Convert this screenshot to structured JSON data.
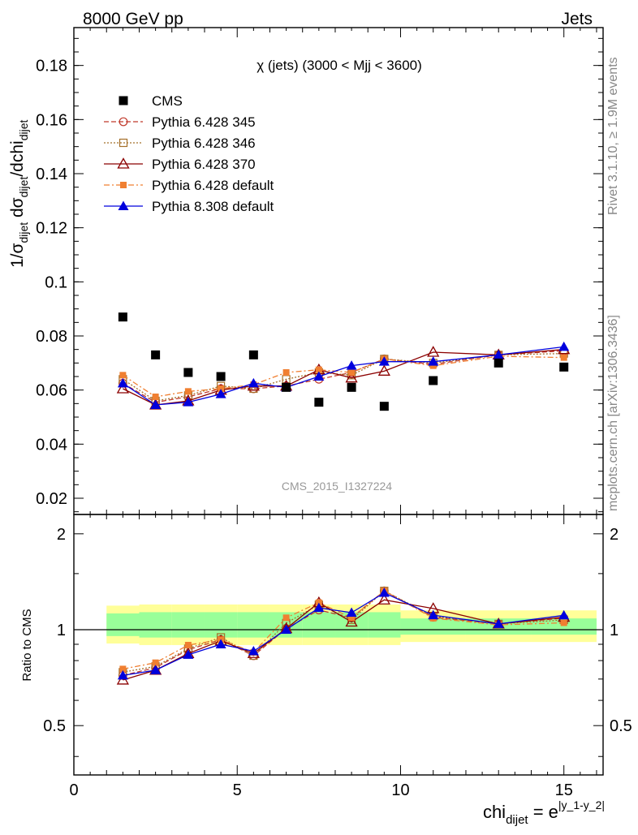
{
  "header": {
    "left": "8000 GeV pp",
    "right": "Jets"
  },
  "side_labels": {
    "rivet": "Rivet 3.1.10, ≥ 1.9M events",
    "mcplots": "mcplots.cern.ch [arXiv:1306.3436]"
  },
  "watermark": "CMS_2015_I1327224",
  "chart_data": {
    "type": "scatter",
    "title": "χ (jets) (3000 < Mjj < 3600)",
    "ylabel": {
      "prefix": "1/σ",
      "sub1": "dijet",
      "mid": " dσ",
      "sub2": "dijet",
      "tail": "/dchi",
      "sub3": "dijet"
    },
    "xlabel": {
      "base": "chi",
      "sub": "dijet",
      "eq": " = e",
      "sup": "|y_1-y_2|"
    },
    "xlim": [
      0,
      16.2
    ],
    "ylim": [
      0.014,
      0.194
    ],
    "ratio_ylabel": "Ratio to CMS",
    "ratio_ylim": [
      0.35,
      2.3
    ],
    "x_ticks": [
      "0",
      "5",
      "10",
      "15"
    ],
    "y_ticks": [
      "0.02",
      "0.04",
      "0.06",
      "0.08",
      "0.1",
      "0.12",
      "0.14",
      "0.16",
      "0.18"
    ],
    "ratio_ticks": [
      "0.5",
      "1",
      "2"
    ],
    "x": [
      1.5,
      2.5,
      3.5,
      4.5,
      5.5,
      6.5,
      7.5,
      8.5,
      9.5,
      11,
      13,
      15
    ],
    "bin_edges": [
      1,
      2,
      3,
      4,
      5,
      6,
      7,
      8,
      9,
      10,
      12,
      14,
      16
    ],
    "series": [
      {
        "name": "CMS",
        "color": "#000000",
        "marker": "square",
        "values": [
          0.087,
          0.073,
          0.0665,
          0.065,
          0.073,
          0.061,
          0.0555,
          0.061,
          0.054,
          0.0635,
          0.07,
          0.0685
        ]
      },
      {
        "name": "Pythia 6.428 345",
        "color": "#c0392b",
        "marker": "open-circle",
        "dash": "6,3",
        "values": [
          0.0625,
          0.0555,
          0.0575,
          0.0605,
          0.0605,
          0.0615,
          0.064,
          0.0665,
          0.0715,
          0.0695,
          0.073,
          0.0745
        ]
      },
      {
        "name": "Pythia 6.428 346",
        "color": "#a5702a",
        "marker": "open-square",
        "dash": "2,2",
        "values": [
          0.064,
          0.056,
          0.058,
          0.0615,
          0.0605,
          0.064,
          0.0665,
          0.0655,
          0.0715,
          0.07,
          0.073,
          0.0735
        ]
      },
      {
        "name": "Pythia 6.428 370",
        "color": "#8b0000",
        "marker": "open-triangle",
        "dash": "",
        "values": [
          0.0605,
          0.0545,
          0.056,
          0.06,
          0.0615,
          0.0615,
          0.0675,
          0.0645,
          0.067,
          0.074,
          0.073,
          0.075
        ]
      },
      {
        "name": "Pythia 6.428 default",
        "color": "#f07f31",
        "marker": "filled-square",
        "dash": "7,3,2,3",
        "values": [
          0.0655,
          0.0575,
          0.0595,
          0.0605,
          0.062,
          0.0665,
          0.0675,
          0.0665,
          0.0715,
          0.069,
          0.0725,
          0.072
        ]
      },
      {
        "name": "Pythia 8.308 default",
        "color": "#0000dd",
        "marker": "filled-triangle",
        "dash": "",
        "values": [
          0.0625,
          0.0545,
          0.0555,
          0.0585,
          0.0625,
          0.061,
          0.065,
          0.069,
          0.0705,
          0.0705,
          0.073,
          0.076
        ]
      }
    ],
    "ratio_bands": {
      "inner": [
        [
          0.955,
          1.125
        ],
        [
          0.945,
          1.135
        ],
        [
          0.945,
          1.135
        ],
        [
          0.945,
          1.135
        ],
        [
          0.945,
          1.135
        ],
        [
          0.945,
          1.135
        ],
        [
          0.945,
          1.135
        ],
        [
          0.945,
          1.135
        ],
        [
          0.945,
          1.135
        ],
        [
          0.965,
          1.085
        ],
        [
          0.965,
          1.085
        ],
        [
          0.965,
          1.085
        ]
      ],
      "outer": [
        [
          0.905,
          1.19
        ],
        [
          0.895,
          1.2
        ],
        [
          0.895,
          1.2
        ],
        [
          0.895,
          1.2
        ],
        [
          0.895,
          1.2
        ],
        [
          0.895,
          1.2
        ],
        [
          0.895,
          1.2
        ],
        [
          0.895,
          1.2
        ],
        [
          0.895,
          1.2
        ],
        [
          0.915,
          1.15
        ],
        [
          0.915,
          1.15
        ],
        [
          0.915,
          1.15
        ]
      ]
    },
    "band_colors": {
      "inner": "#99ff99",
      "outer": "#ffff99"
    }
  }
}
